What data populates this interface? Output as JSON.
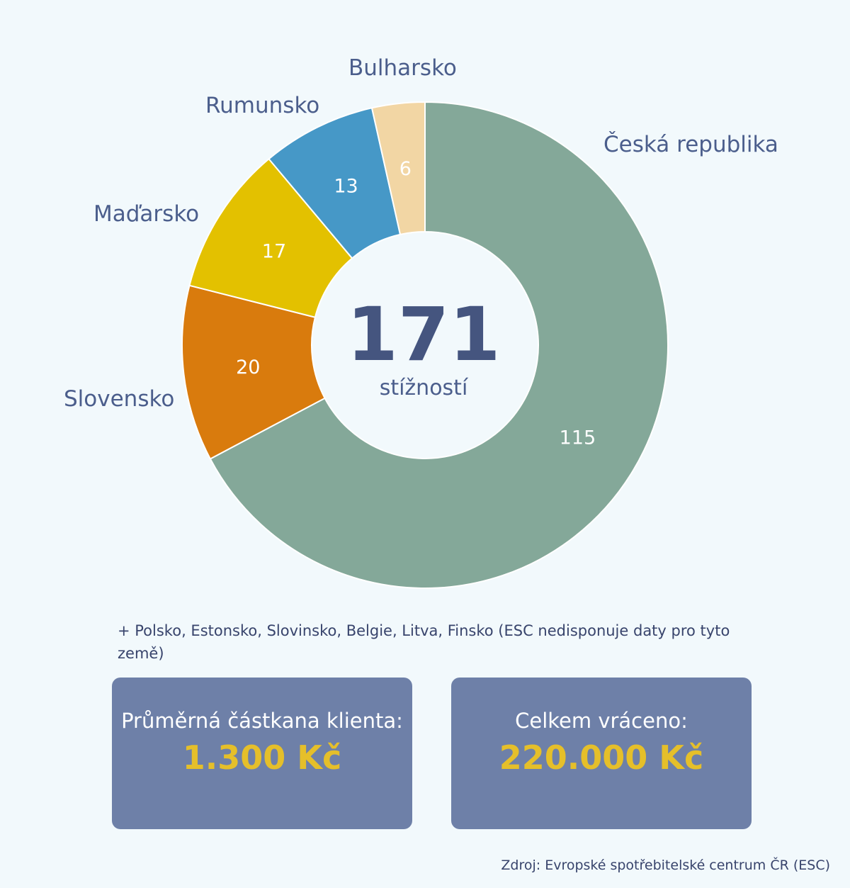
{
  "chart_data": {
    "type": "pie",
    "variant": "donut",
    "title": "",
    "slices": [
      {
        "label": "Česká republika",
        "value": 115,
        "color": "#84a899"
      },
      {
        "label": "Slovensko",
        "value": 20,
        "color": "#d97b0d"
      },
      {
        "label": "Maďarsko",
        "value": 17,
        "color": "#e3c100"
      },
      {
        "label": "Rumunsko",
        "value": 13,
        "color": "#4698c7"
      },
      {
        "label": "Bulharsko",
        "value": 6,
        "color": "#f2d6a4"
      }
    ],
    "center": {
      "total": "171",
      "unit": "stížností"
    }
  },
  "note": "+ Polsko, Estonsko, Slovinsko, Belgie, Litva, Finsko (ESC nedisponuje daty pro tyto země)",
  "stats": [
    {
      "label": "Průměrná částkana klienta:",
      "value": "1.300 Kč"
    },
    {
      "label": "Celkem vráceno:",
      "value": "220.000 Kč"
    }
  ],
  "source": "Zdroj: Evropské spotřebitelské centrum ČR (ESC)",
  "colors": {
    "background": "#f2f9fc",
    "box": "#6e80a8",
    "highlight": "#e5bf2a",
    "text": "#4b5e8c"
  }
}
